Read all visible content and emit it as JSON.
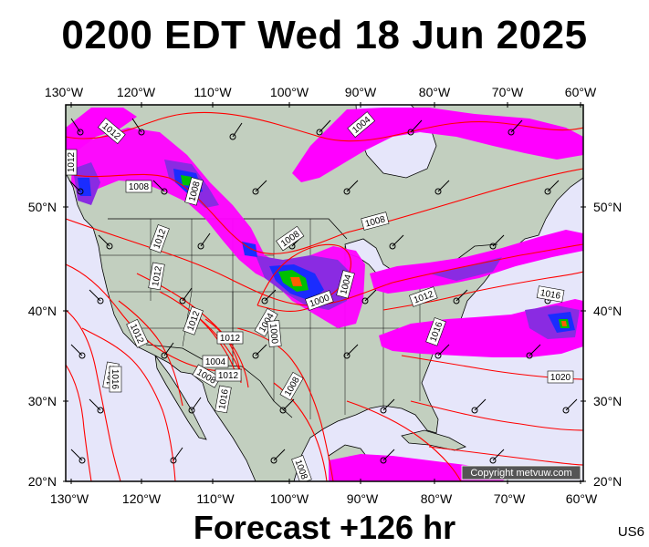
{
  "title": "0200 EDT Wed 18 Jun 2025",
  "subtitle": "Forecast +126 hr",
  "region_code": "US6",
  "credit": "Copyright metvuw.com",
  "axes": {
    "top_lon": [
      "130°W",
      "120°W",
      "110°W",
      "100°W",
      "90°W",
      "80°W",
      "70°W",
      "60°W"
    ],
    "bottom_lon": [
      "130°W",
      "120°W",
      "110°W",
      "100°W",
      "90°W",
      "80°W",
      "70°W",
      "60°W"
    ],
    "left_lat": [
      "50°N",
      "40°N",
      "30°N",
      "20°N"
    ],
    "right_lat": [
      "50°N",
      "40°N",
      "30°N",
      "20°N"
    ]
  },
  "isobar_labels": [
    "1012",
    "1012",
    "1008",
    "1008",
    "1008",
    "1004",
    "1012",
    "1012",
    "1012",
    "1012",
    "1016",
    "1012",
    "1004",
    "1000",
    "1008",
    "1000",
    "1004",
    "1008",
    "1012",
    "1016",
    "1016",
    "1020",
    "1016",
    "1004",
    "1008",
    "1012",
    "1008",
    "1016"
  ],
  "colors": {
    "ocean": "#e6e6fa",
    "land": "#c2cfbf",
    "isobar": "#ff0000",
    "rain_light": "#ff00ff",
    "rain_medium": "#8a2be2",
    "rain_heavy": "#1a2cff",
    "rain_intense": "#00c000",
    "rain_extreme": "#ff6000"
  }
}
